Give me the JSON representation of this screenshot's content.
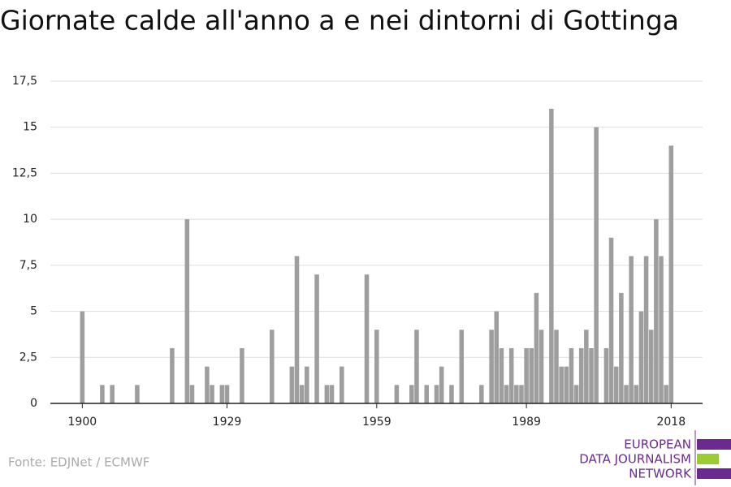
{
  "chart_data": {
    "type": "bar",
    "title": "Giornate calde all'anno a e nei dintorni di Gottinga",
    "source": "Fonte: EDJNet / ECMWF",
    "logo": [
      "EUROPEAN",
      "DATA JOURNALISM",
      "NETWORK"
    ],
    "color": "#9e9e9e",
    "x": [
      1900,
      1901,
      1902,
      1903,
      1904,
      1905,
      1906,
      1907,
      1908,
      1909,
      1910,
      1911,
      1912,
      1913,
      1914,
      1915,
      1916,
      1917,
      1918,
      1919,
      1920,
      1921,
      1922,
      1923,
      1924,
      1925,
      1926,
      1927,
      1928,
      1929,
      1930,
      1931,
      1932,
      1933,
      1934,
      1935,
      1936,
      1937,
      1938,
      1939,
      1940,
      1941,
      1942,
      1943,
      1944,
      1945,
      1946,
      1947,
      1948,
      1949,
      1950,
      1951,
      1952,
      1953,
      1954,
      1955,
      1956,
      1957,
      1958,
      1959,
      1960,
      1961,
      1962,
      1963,
      1964,
      1965,
      1966,
      1967,
      1968,
      1969,
      1970,
      1971,
      1972,
      1973,
      1974,
      1975,
      1976,
      1977,
      1978,
      1979,
      1980,
      1981,
      1982,
      1983,
      1984,
      1985,
      1986,
      1987,
      1988,
      1989,
      1990,
      1991,
      1992,
      1993,
      1994,
      1995,
      1996,
      1997,
      1998,
      1999,
      2000,
      2001,
      2002,
      2003,
      2004,
      2005,
      2006,
      2007,
      2008,
      2009,
      2010,
      2011,
      2012,
      2013,
      2014,
      2015,
      2016,
      2017,
      2018
    ],
    "values": [
      5,
      0,
      0,
      0,
      1,
      0,
      1,
      0,
      0,
      0,
      0,
      1,
      0,
      0,
      0,
      0,
      0,
      0,
      3,
      0,
      0,
      10,
      1,
      0,
      0,
      2,
      1,
      0,
      1,
      1,
      0,
      0,
      3,
      0,
      0,
      0,
      0,
      0,
      4,
      0,
      0,
      0,
      2,
      8,
      1,
      2,
      0,
      7,
      0,
      1,
      1,
      0,
      2,
      0,
      0,
      0,
      0,
      7,
      0,
      4,
      0,
      0,
      0,
      1,
      0,
      0,
      1,
      4,
      0,
      1,
      0,
      1,
      2,
      0,
      1,
      0,
      4,
      0,
      0,
      0,
      1,
      0,
      4,
      5,
      3,
      1,
      3,
      1,
      1,
      3,
      3,
      6,
      4,
      0,
      16,
      4,
      2,
      2,
      3,
      1,
      3,
      4,
      3,
      15,
      0,
      3,
      9,
      2,
      6,
      1,
      8,
      1,
      5,
      8,
      4,
      10,
      8,
      1,
      14
    ],
    "xlim": [
      1893.6,
      2024.3
    ],
    "xticks": [
      1900,
      1929,
      1959,
      1989,
      2018
    ],
    "ylim": [
      0,
      17.5
    ],
    "yticks": [
      0,
      {
        "value": 2.5,
        "label": "2,5"
      },
      5,
      {
        "value": 7.5,
        "label": "7,5"
      },
      10,
      {
        "value": 12.5,
        "label": "12,5"
      },
      15,
      {
        "value": 17.5,
        "label": "17,5"
      }
    ],
    "grid": true
  }
}
